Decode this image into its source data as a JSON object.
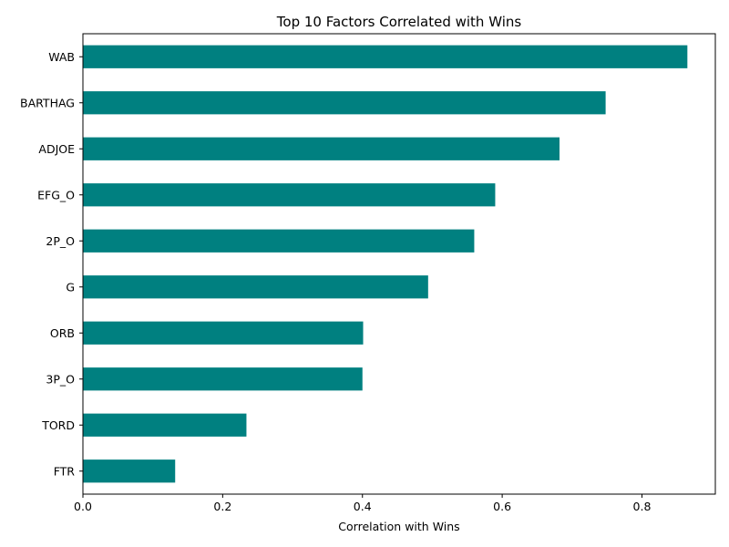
{
  "chart_data": {
    "type": "bar",
    "orientation": "horizontal",
    "title": "Top 10 Factors Correlated with Wins",
    "xlabel": "Correlation with Wins",
    "ylabel": "",
    "categories": [
      "WAB",
      "BARTHAG",
      "ADJOE",
      "EFG_O",
      "2P_O",
      "G",
      "ORB",
      "3P_O",
      "TORD",
      "FTR"
    ],
    "values": [
      0.865,
      0.748,
      0.682,
      0.59,
      0.56,
      0.494,
      0.401,
      0.4,
      0.234,
      0.132
    ],
    "xlim": [
      0,
      0.905
    ],
    "xticks": [
      0.0,
      0.2,
      0.4,
      0.6,
      0.8
    ],
    "xtick_labels": [
      "0.0",
      "0.2",
      "0.4",
      "0.6",
      "0.8"
    ],
    "bar_color": "#008080",
    "grid": false,
    "legend": "none"
  }
}
